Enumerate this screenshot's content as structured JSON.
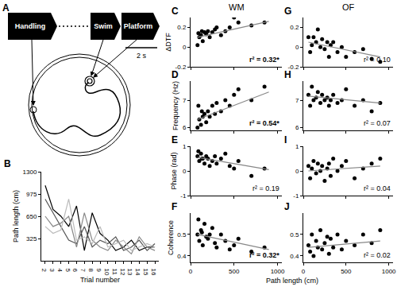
{
  "panel_a": {
    "label": "A",
    "steps": [
      "Handling",
      "Swim",
      "Platform"
    ],
    "scale_bar": "2 s"
  },
  "columns": [
    "WM",
    "OF"
  ],
  "x_title": "Path length (cm)",
  "chart_data": [
    {
      "panel": "B",
      "type": "line",
      "x_label": "Trial number",
      "y_label": "Path length (cm)",
      "x": [
        2,
        3,
        4,
        5,
        6,
        7,
        8,
        9,
        10,
        11,
        12,
        13,
        14,
        15,
        16
      ],
      "xlim": [
        1.5,
        16.5
      ],
      "xticks": [
        2,
        3,
        4,
        5,
        6,
        7,
        8,
        9,
        10,
        11,
        12,
        13,
        14,
        15,
        16
      ],
      "ylim": [
        0,
        1300
      ],
      "yticks": [
        325,
        650,
        975,
        1300
      ],
      "series": [
        {
          "color": "#000000",
          "values": [
            1100,
            750,
            650,
            500,
            800,
            150,
            700,
            400,
            300,
            150,
            200,
            300,
            150,
            200,
            200
          ]
        },
        {
          "color": "#555555",
          "values": [
            900,
            700,
            500,
            300,
            250,
            500,
            200,
            300,
            250,
            350,
            150,
            200,
            300,
            150,
            250
          ]
        },
        {
          "color": "#888888",
          "values": [
            650,
            500,
            550,
            650,
            200,
            700,
            300,
            200,
            150,
            300,
            200,
            100,
            350,
            200,
            150
          ]
        },
        {
          "color": "#bbbbbb",
          "values": [
            500,
            400,
            450,
            900,
            300,
            350,
            250,
            500,
            200,
            250,
            300,
            150,
            200,
            250,
            200
          ]
        }
      ]
    },
    {
      "panel": "C",
      "column": "WM",
      "type": "scatter",
      "y_label": "ΔDTF",
      "tick_labels": "y",
      "xlim": [
        0,
        1050
      ],
      "xticks": [
        0,
        500,
        1000
      ],
      "ylim": [
        -0.2,
        0.3
      ],
      "yticks": [
        -0.2,
        0,
        0.2
      ],
      "annotations": [
        "r² = 0.32*"
      ],
      "series": [
        {
          "type": "scatter",
          "marker": "circle",
          "color": "#000000",
          "x": [
            80,
            100,
            120,
            140,
            160,
            180,
            200,
            220,
            250,
            280,
            300,
            350,
            400,
            450,
            500,
            550,
            700,
            850,
            90,
            130
          ],
          "values": [
            0.02,
            0.1,
            0.12,
            0.06,
            0.15,
            0.13,
            0.16,
            0.1,
            0.15,
            0.18,
            0.2,
            0.12,
            0.16,
            0.2,
            0.3,
            0.25,
            0.22,
            0.25,
            0.14,
            0.16
          ]
        },
        {
          "type": "line",
          "line_style": "solid",
          "color": "#888888",
          "x": [
            80,
            900
          ],
          "values": [
            0.1,
            0.26
          ]
        }
      ]
    },
    {
      "panel": "D",
      "column": "WM",
      "type": "scatter",
      "y_label": "Frequency (Hz)",
      "tick_labels": "y",
      "xlim": [
        0,
        1050
      ],
      "xticks": [
        0,
        500,
        1000
      ],
      "ylim": [
        5.9,
        7.7
      ],
      "yticks": [
        6,
        7
      ],
      "annotations": [
        "r² = 0.54*"
      ],
      "series": [
        {
          "type": "scatter",
          "marker": "circle",
          "color": "#000000",
          "x": [
            80,
            100,
            120,
            140,
            160,
            180,
            200,
            220,
            250,
            280,
            300,
            350,
            400,
            450,
            500,
            550,
            700,
            850,
            90,
            130
          ],
          "values": [
            6.0,
            6.3,
            6.1,
            6.4,
            6.5,
            6.2,
            6.6,
            6.4,
            6.8,
            6.5,
            6.9,
            6.6,
            7.0,
            6.8,
            7.2,
            7.4,
            7.0,
            7.5,
            6.8,
            6.6
          ]
        },
        {
          "type": "line",
          "line_style": "solid",
          "color": "#888888",
          "x": [
            80,
            900
          ],
          "values": [
            6.3,
            7.3
          ]
        }
      ]
    },
    {
      "panel": "E",
      "column": "WM",
      "type": "scatter",
      "y_label": "Phase (rad)",
      "tick_labels": "y",
      "xlim": [
        0,
        1050
      ],
      "xticks": [
        0,
        500,
        1000
      ],
      "ylim": [
        -1,
        1
      ],
      "yticks": [
        -1,
        0,
        1
      ],
      "annotations": [
        "r² = 0.19"
      ],
      "series": [
        {
          "type": "scatter",
          "marker": "circle",
          "color": "#000000",
          "x": [
            80,
            100,
            120,
            140,
            160,
            180,
            200,
            220,
            250,
            280,
            300,
            350,
            400,
            450,
            500,
            550,
            700,
            850,
            90,
            130
          ],
          "values": [
            0.6,
            0.4,
            0.7,
            0.5,
            0.3,
            0.6,
            0.5,
            0.2,
            0.4,
            0.6,
            0.3,
            0.5,
            0.7,
            0.2,
            0.1,
            0.4,
            -0.2,
            0.1,
            0.8,
            0.5
          ]
        },
        {
          "type": "line",
          "line_style": "solid",
          "color": "#888888",
          "x": [
            80,
            900
          ],
          "values": [
            0.55,
            0.05
          ]
        }
      ]
    },
    {
      "panel": "F",
      "column": "WM",
      "type": "scatter",
      "y_label": "Coherence",
      "xlim": [
        0,
        1050
      ],
      "xticks": [
        0,
        500,
        1000
      ],
      "ylim": [
        0.37,
        0.6
      ],
      "yticks": [
        0.4,
        0.5
      ],
      "annotations": [
        "r² = 0.32*"
      ],
      "series": [
        {
          "type": "scatter",
          "marker": "circle",
          "color": "#000000",
          "x": [
            80,
            100,
            120,
            140,
            160,
            180,
            200,
            220,
            250,
            280,
            300,
            350,
            400,
            450,
            500,
            550,
            700,
            850,
            90,
            130
          ],
          "values": [
            0.5,
            0.47,
            0.52,
            0.45,
            0.55,
            0.49,
            0.48,
            0.5,
            0.53,
            0.46,
            0.44,
            0.5,
            0.47,
            0.43,
            0.45,
            0.48,
            0.42,
            0.44,
            0.57,
            0.51
          ]
        },
        {
          "type": "line",
          "line_style": "solid",
          "color": "#888888",
          "x": [
            80,
            900
          ],
          "values": [
            0.5,
            0.43
          ]
        }
      ]
    },
    {
      "panel": "G",
      "column": "OF",
      "type": "scatter",
      "tick_labels": "y",
      "xlim": [
        0,
        1050
      ],
      "xticks": [
        0,
        500,
        1000
      ],
      "ylim": [
        -0.2,
        0.3
      ],
      "yticks": [
        -0.2,
        0,
        0.2
      ],
      "annotations": [
        "r² = 0.10"
      ],
      "series": [
        {
          "type": "scatter",
          "marker": "circle",
          "color": "#000000",
          "x": [
            60,
            80,
            100,
            120,
            150,
            170,
            200,
            220,
            250,
            280,
            300,
            320,
            350,
            400,
            450,
            500,
            600,
            700,
            800,
            900
          ],
          "values": [
            0.1,
            -0.05,
            0.02,
            0.1,
            0.05,
            0.18,
            0.0,
            0.08,
            -0.02,
            0.05,
            -0.1,
            0.02,
            0.05,
            -0.05,
            0.0,
            -0.1,
            -0.05,
            -0.02,
            -0.12,
            -0.15
          ]
        },
        {
          "type": "line",
          "line_style": "solid",
          "color": "#888888",
          "x": [
            60,
            900
          ],
          "values": [
            0.05,
            -0.1
          ]
        }
      ]
    },
    {
      "panel": "H",
      "column": "OF",
      "type": "scatter",
      "tick_labels": "y",
      "xlim": [
        0,
        1050
      ],
      "xticks": [
        0,
        500,
        1000
      ],
      "ylim": [
        5.9,
        7.7
      ],
      "yticks": [
        6,
        7
      ],
      "annotations": [
        "r² = 0.07"
      ],
      "series": [
        {
          "type": "scatter",
          "marker": "circle",
          "color": "#000000",
          "x": [
            60,
            80,
            100,
            120,
            150,
            170,
            200,
            220,
            250,
            280,
            300,
            320,
            350,
            400,
            450,
            500,
            600,
            700,
            800,
            900
          ],
          "values": [
            7.2,
            6.8,
            7.5,
            7.0,
            7.1,
            7.3,
            6.9,
            7.2,
            7.0,
            7.1,
            6.8,
            7.0,
            7.2,
            6.9,
            7.0,
            7.4,
            6.8,
            7.0,
            6.6,
            6.9
          ]
        },
        {
          "type": "line",
          "line_style": "solid",
          "color": "#888888",
          "x": [
            60,
            900
          ],
          "values": [
            7.15,
            6.9
          ]
        }
      ]
    },
    {
      "panel": "I",
      "column": "OF",
      "type": "scatter",
      "tick_labels": "y",
      "xlim": [
        0,
        1050
      ],
      "xticks": [
        0,
        500,
        1000
      ],
      "ylim": [
        -1,
        1
      ],
      "yticks": [
        -1,
        0,
        1
      ],
      "annotations": [
        "r² = 0.04"
      ],
      "series": [
        {
          "type": "scatter",
          "marker": "circle",
          "color": "#000000",
          "x": [
            60,
            80,
            100,
            120,
            150,
            170,
            200,
            220,
            250,
            280,
            300,
            320,
            350,
            400,
            450,
            500,
            600,
            700,
            800,
            900
          ],
          "values": [
            0.2,
            -0.3,
            0.1,
            0.4,
            -0.1,
            0.3,
            0.0,
            0.2,
            -0.4,
            0.1,
            0.3,
            -0.2,
            0.5,
            0.0,
            0.2,
            0.4,
            -0.3,
            0.1,
            0.3,
            0.5
          ]
        },
        {
          "type": "line",
          "line_style": "solid",
          "color": "#888888",
          "x": [
            60,
            900
          ],
          "values": [
            0.0,
            0.2
          ]
        }
      ]
    },
    {
      "panel": "J",
      "column": "OF",
      "type": "scatter",
      "xlim": [
        0,
        1050
      ],
      "xticks": [
        0,
        500,
        1000
      ],
      "ylim": [
        0.37,
        0.6
      ],
      "yticks": [
        0.4,
        0.5
      ],
      "annotations": [
        "r² = 0.02"
      ],
      "series": [
        {
          "type": "scatter",
          "marker": "circle",
          "color": "#000000",
          "x": [
            60,
            80,
            100,
            120,
            150,
            170,
            200,
            220,
            250,
            280,
            300,
            320,
            350,
            400,
            450,
            500,
            600,
            700,
            800,
            900
          ],
          "values": [
            0.45,
            0.42,
            0.5,
            0.4,
            0.47,
            0.44,
            0.52,
            0.43,
            0.46,
            0.49,
            0.41,
            0.48,
            0.44,
            0.5,
            0.43,
            0.47,
            0.45,
            0.5,
            0.46,
            0.52
          ]
        },
        {
          "type": "line",
          "line_style": "solid",
          "color": "#888888",
          "x": [
            60,
            900
          ],
          "values": [
            0.44,
            0.47
          ]
        }
      ]
    }
  ]
}
